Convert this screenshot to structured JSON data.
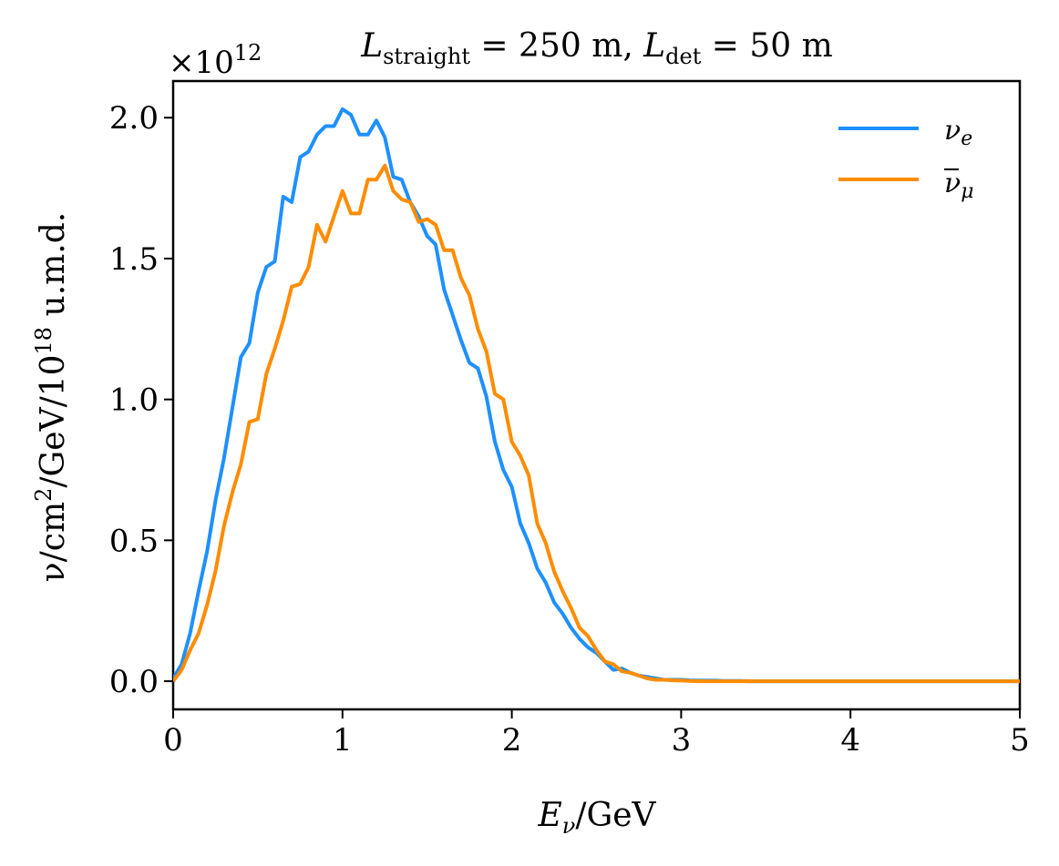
{
  "chart_data": {
    "type": "line",
    "title": "L_straight = 250 m, L_det = 50 m",
    "title_parts": {
      "l1_base": "L",
      "l1_sub": "straight",
      "l1_rest": " = 250 m, ",
      "l2_base": "L",
      "l2_sub": "det",
      "l2_rest": " = 50 m"
    },
    "xlabel": "E_ν/GeV",
    "xlabel_parts": {
      "base": "E",
      "sub": "ν",
      "rest": "/GeV"
    },
    "ylabel": "ν/cm²/GeV/10¹⁸ u.m.d.",
    "ylabel_parts": {
      "a": "ν/cm",
      "sup1": "2",
      "b": "/GeV/10",
      "sup2": "18",
      "c": " u.m.d."
    },
    "y_multiplier": {
      "base": "×10",
      "exp": "12"
    },
    "xlim": [
      0,
      5
    ],
    "ylim": [
      -0.1,
      2.13
    ],
    "x_ticks": [
      0,
      1,
      2,
      3,
      4,
      5
    ],
    "x_tick_labels": [
      "0",
      "1",
      "2",
      "3",
      "4",
      "5"
    ],
    "y_ticks": [
      0.0,
      0.5,
      1.0,
      1.5,
      2.0
    ],
    "y_tick_labels": [
      "0.0",
      "0.5",
      "1.0",
      "1.5",
      "2.0"
    ],
    "grid": false,
    "legend_position": "top-right",
    "series": [
      {
        "name": "ν_e",
        "legend_parts": {
          "base": "ν",
          "sub": "e",
          "overline": false
        },
        "color": "#1e90ff",
        "x": [
          0.0,
          0.05,
          0.1,
          0.15,
          0.2,
          0.25,
          0.3,
          0.35,
          0.4,
          0.45,
          0.5,
          0.55,
          0.6,
          0.65,
          0.7,
          0.75,
          0.8,
          0.85,
          0.9,
          0.95,
          1.0,
          1.05,
          1.1,
          1.15,
          1.2,
          1.25,
          1.3,
          1.35,
          1.4,
          1.45,
          1.5,
          1.55,
          1.6,
          1.65,
          1.7,
          1.75,
          1.8,
          1.85,
          1.9,
          1.95,
          2.0,
          2.05,
          2.1,
          2.15,
          2.2,
          2.25,
          2.3,
          2.35,
          2.4,
          2.45,
          2.5,
          2.55,
          2.6,
          2.65,
          2.7,
          2.75,
          2.8,
          2.85,
          2.9,
          2.95,
          3.0,
          3.05,
          3.1,
          3.15,
          3.2,
          3.25,
          3.3,
          3.35,
          3.4,
          3.45,
          3.5,
          3.55,
          3.6,
          3.65,
          3.7,
          3.75,
          3.8,
          3.85,
          3.9,
          3.95,
          4.0,
          4.05,
          4.1,
          4.15,
          4.2,
          4.3,
          4.4,
          4.5,
          4.6,
          4.8,
          5.0
        ],
        "y": [
          0.01,
          0.06,
          0.17,
          0.32,
          0.46,
          0.64,
          0.79,
          0.97,
          1.15,
          1.2,
          1.38,
          1.47,
          1.49,
          1.72,
          1.7,
          1.86,
          1.88,
          1.94,
          1.97,
          1.97,
          2.03,
          2.01,
          1.94,
          1.94,
          1.99,
          1.93,
          1.79,
          1.78,
          1.7,
          1.65,
          1.58,
          1.55,
          1.39,
          1.3,
          1.21,
          1.13,
          1.11,
          1.01,
          0.85,
          0.75,
          0.69,
          0.56,
          0.49,
          0.4,
          0.35,
          0.28,
          0.24,
          0.19,
          0.15,
          0.12,
          0.1,
          0.07,
          0.04,
          0.045,
          0.03,
          0.02,
          0.015,
          0.01,
          0.005,
          0.005,
          0.005,
          0.003,
          0.002,
          0.002,
          0.002,
          0.001,
          0.001,
          0.001,
          0.0,
          0.0,
          0.0,
          0.0,
          0.0,
          0.0,
          0.0,
          0.0,
          0.0,
          0.0,
          0.0,
          0.0,
          0.0,
          0.0,
          0.0,
          0.0,
          0.0,
          0.0,
          0.0,
          0.0,
          0.0,
          0.0,
          0.0
        ]
      },
      {
        "name": "ν̄_μ",
        "legend_parts": {
          "base": "ν",
          "sub": "μ",
          "overline": true
        },
        "color": "#ff8c00",
        "x": [
          0.0,
          0.05,
          0.1,
          0.15,
          0.2,
          0.25,
          0.3,
          0.35,
          0.4,
          0.45,
          0.5,
          0.55,
          0.6,
          0.65,
          0.7,
          0.75,
          0.8,
          0.85,
          0.9,
          0.95,
          1.0,
          1.05,
          1.1,
          1.15,
          1.2,
          1.25,
          1.3,
          1.35,
          1.4,
          1.45,
          1.5,
          1.55,
          1.6,
          1.65,
          1.7,
          1.75,
          1.8,
          1.85,
          1.9,
          1.95,
          2.0,
          2.05,
          2.1,
          2.15,
          2.2,
          2.25,
          2.3,
          2.35,
          2.4,
          2.45,
          2.5,
          2.55,
          2.6,
          2.65,
          2.7,
          2.75,
          2.8,
          2.85,
          2.9,
          2.95,
          3.0,
          3.05,
          3.1,
          3.15,
          3.2,
          3.25,
          3.3,
          3.35,
          3.4,
          3.45,
          3.5,
          3.55,
          3.6,
          3.65,
          3.7,
          3.75,
          3.8,
          3.85,
          3.9,
          3.95,
          4.0,
          4.05,
          4.1,
          4.15,
          4.2,
          4.3,
          4.4,
          4.5,
          4.6,
          4.8,
          5.0
        ],
        "y": [
          0.0,
          0.04,
          0.11,
          0.17,
          0.27,
          0.39,
          0.55,
          0.67,
          0.77,
          0.92,
          0.93,
          1.09,
          1.18,
          1.28,
          1.4,
          1.41,
          1.47,
          1.62,
          1.56,
          1.65,
          1.74,
          1.66,
          1.66,
          1.78,
          1.78,
          1.83,
          1.74,
          1.71,
          1.7,
          1.63,
          1.64,
          1.62,
          1.53,
          1.53,
          1.43,
          1.37,
          1.25,
          1.17,
          1.02,
          1.0,
          0.85,
          0.8,
          0.73,
          0.56,
          0.49,
          0.39,
          0.32,
          0.26,
          0.19,
          0.16,
          0.11,
          0.07,
          0.06,
          0.035,
          0.03,
          0.02,
          0.01,
          0.005,
          0.005,
          0.003,
          0.002,
          0.001,
          0.0,
          0.0,
          0.0,
          0.0,
          0.0,
          0.0,
          0.0,
          0.0,
          0.0,
          0.0,
          0.0,
          0.0,
          0.0,
          0.0,
          0.0,
          0.0,
          0.0,
          0.0,
          0.0,
          0.0,
          0.0,
          0.0,
          0.0,
          0.0,
          0.0,
          0.0,
          0.0,
          0.0,
          0.0
        ]
      }
    ]
  }
}
